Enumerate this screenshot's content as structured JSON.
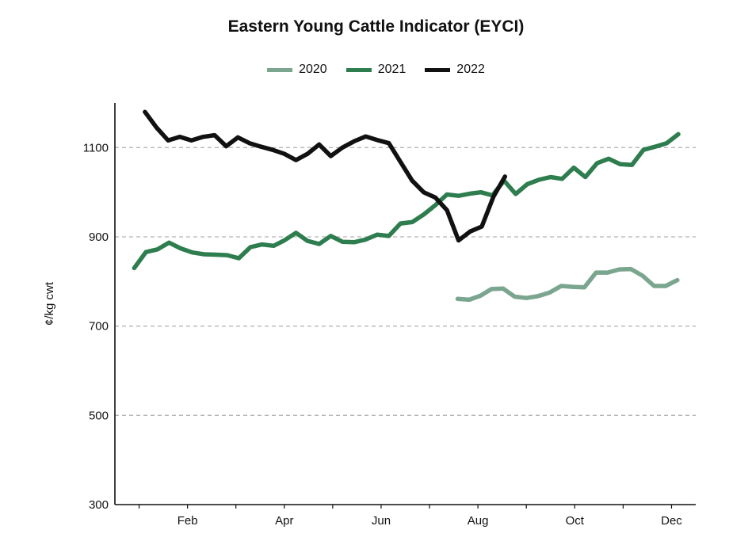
{
  "chart_data": {
    "type": "line",
    "title": "Eastern Young Cattle Indicator (EYCI)",
    "ylabel": "¢/kg cwt",
    "xlabel": "",
    "ylim": [
      300,
      1200
    ],
    "yticks": [
      300,
      500,
      700,
      900,
      1100
    ],
    "xlim": [
      0.5,
      12.5
    ],
    "xtick_positions": [
      2,
      4,
      6,
      8,
      10,
      12
    ],
    "xtick_labels": [
      "Feb",
      "Apr",
      "Jun",
      "Aug",
      "Oct",
      "Dec"
    ],
    "grid": "horizontal dashed",
    "legend": "top-center",
    "series": [
      {
        "name": "2020",
        "color": "#7aa58e",
        "x": [
          7.58,
          7.82,
          8.05,
          8.28,
          8.52,
          8.76,
          9.0,
          9.24,
          9.48,
          9.72,
          9.96,
          10.2,
          10.44,
          10.68,
          10.92,
          11.16,
          11.4,
          11.64,
          11.88,
          12.12
        ],
        "y": [
          761,
          759,
          768,
          783,
          784,
          766,
          763,
          767,
          775,
          790,
          788,
          787,
          820,
          820,
          827,
          828,
          813,
          790,
          790,
          803
        ]
      },
      {
        "name": "2021",
        "color": "#2e7d4f",
        "x": [
          0.9,
          1.14,
          1.38,
          1.62,
          1.86,
          2.1,
          2.34,
          2.58,
          2.82,
          3.06,
          3.3,
          3.54,
          3.78,
          4.0,
          4.24,
          4.48,
          4.72,
          4.96,
          5.2,
          5.44,
          5.68,
          5.92,
          6.16,
          6.4,
          6.64,
          6.88,
          7.12,
          7.36,
          7.6,
          7.84,
          8.06,
          8.3,
          8.54,
          8.78,
          9.02,
          9.26,
          9.5,
          9.74,
          9.98,
          10.22,
          10.46,
          10.7,
          10.94,
          11.18,
          11.42,
          11.66,
          11.9,
          12.14
        ],
        "y": [
          830,
          866,
          872,
          887,
          874,
          865,
          861,
          860,
          859,
          852,
          877,
          883,
          880,
          892,
          909,
          891,
          884,
          902,
          889,
          888,
          894,
          905,
          902,
          930,
          933,
          950,
          971,
          995,
          992,
          997,
          1000,
          993,
          1026,
          996,
          1018,
          1028,
          1034,
          1030,
          1055,
          1034,
          1065,
          1075,
          1063,
          1061,
          1095,
          1102,
          1110,
          1130
        ]
      },
      {
        "name": "2022",
        "color": "#111111",
        "x": [
          1.12,
          1.36,
          1.6,
          1.84,
          2.08,
          2.32,
          2.56,
          2.8,
          3.04,
          3.28,
          3.52,
          3.76,
          4.0,
          4.24,
          4.48,
          4.72,
          4.96,
          5.2,
          5.44,
          5.68,
          5.92,
          6.16,
          6.4,
          6.64,
          6.88,
          7.12,
          7.36,
          7.6,
          7.84,
          8.08,
          8.32,
          8.56
        ],
        "y": [
          1180,
          1145,
          1116,
          1124,
          1116,
          1124,
          1128,
          1103,
          1123,
          1110,
          1102,
          1095,
          1086,
          1072,
          1086,
          1107,
          1081,
          1100,
          1114,
          1125,
          1117,
          1110,
          1068,
          1026,
          1000,
          988,
          960,
          892,
          912,
          923,
          990,
          1035
        ]
      }
    ]
  }
}
